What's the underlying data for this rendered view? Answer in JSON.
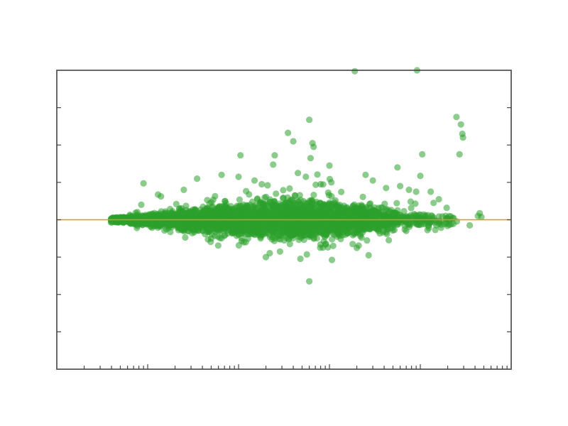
{
  "chart_data": {
    "type": "scatter",
    "title": "",
    "xlabel": "",
    "ylabel": "",
    "x_scale": "log",
    "xlim": [
      0.1,
      10000
    ],
    "ylim": [
      -8,
      8
    ],
    "x_major_ticks": [
      1,
      10,
      100,
      1000,
      10000
    ],
    "y_ticks": [
      -8,
      -6,
      -4,
      -2,
      0,
      2,
      4,
      6,
      8
    ],
    "tick_labels_visible": false,
    "grid": false,
    "reference_line": {
      "y": 0,
      "color": "#e8901c"
    },
    "point_color": "#2ca02c",
    "dense_cloud": [
      {
        "x": 0.5,
        "spread": 0.1,
        "n": 260
      },
      {
        "x": 0.8,
        "spread": 0.2,
        "n": 320
      },
      {
        "x": 1.5,
        "spread": 0.3,
        "n": 380
      },
      {
        "x": 3,
        "spread": 0.45,
        "n": 420
      },
      {
        "x": 6,
        "spread": 0.6,
        "n": 440
      },
      {
        "x": 12,
        "spread": 0.7,
        "n": 460
      },
      {
        "x": 25,
        "spread": 0.8,
        "n": 460
      },
      {
        "x": 50,
        "spread": 0.9,
        "n": 440
      },
      {
        "x": 100,
        "spread": 0.85,
        "n": 380
      },
      {
        "x": 200,
        "spread": 0.7,
        "n": 280
      },
      {
        "x": 400,
        "spread": 0.55,
        "n": 170
      },
      {
        "x": 800,
        "spread": 0.35,
        "n": 90
      },
      {
        "x": 2000,
        "spread": 0.3,
        "n": 40
      }
    ],
    "series": [
      {
        "values": [
          {
            "x": 0.9,
            "y": 1.95
          },
          {
            "x": 1.3,
            "y": 1.35
          },
          {
            "x": 1.4,
            "y": 1.25
          },
          {
            "x": 0.85,
            "y": 0.8
          },
          {
            "x": 2.5,
            "y": 1.6
          },
          {
            "x": 3.5,
            "y": 2.2
          },
          {
            "x": 6.5,
            "y": 2.4
          },
          {
            "x": 10,
            "y": 2.3
          },
          {
            "x": 10.5,
            "y": 3.45
          },
          {
            "x": 25,
            "y": 3.45
          },
          {
            "x": 24,
            "y": 2.95
          },
          {
            "x": 20,
            "y": -2.0
          },
          {
            "x": 40,
            "y": 4.2
          },
          {
            "x": 35,
            "y": 4.65
          },
          {
            "x": 60,
            "y": 5.35
          },
          {
            "x": 60,
            "y": -3.3
          },
          {
            "x": 65,
            "y": 4.1
          },
          {
            "x": 67,
            "y": 3.9
          },
          {
            "x": 62,
            "y": 3.3
          },
          {
            "x": 100,
            "y": 2.9
          },
          {
            "x": 105,
            "y": 2.0
          },
          {
            "x": 110,
            "y": -1.4
          },
          {
            "x": 190,
            "y": 7.95
          },
          {
            "x": 250,
            "y": 2.4
          },
          {
            "x": 300,
            "y": 2.1
          },
          {
            "x": 420,
            "y": 1.7
          },
          {
            "x": 180,
            "y": -1.3
          },
          {
            "x": 270,
            "y": -1.9
          },
          {
            "x": 560,
            "y": 2.8
          },
          {
            "x": 1000,
            "y": 2.35
          },
          {
            "x": 1050,
            "y": 3.5
          },
          {
            "x": 920,
            "y": 8.0
          },
          {
            "x": 2500,
            "y": 5.5
          },
          {
            "x": 2800,
            "y": 5.1
          },
          {
            "x": 2900,
            "y": 4.6
          },
          {
            "x": 2950,
            "y": 4.4
          },
          {
            "x": 2700,
            "y": 3.5
          },
          {
            "x": 4500,
            "y": 0.35
          },
          {
            "x": 4700,
            "y": 0.15
          },
          {
            "x": 4300,
            "y": 0.2
          },
          {
            "x": 3500,
            "y": -0.3
          },
          {
            "x": 1300,
            "y": 1.5
          },
          {
            "x": 1400,
            "y": 0.9
          },
          {
            "x": 1500,
            "y": -0.3
          },
          {
            "x": 700,
            "y": -0.6
          },
          {
            "x": 450,
            "y": -1.1
          },
          {
            "x": 200,
            "y": -1.5
          },
          {
            "x": 150,
            "y": -0.8
          },
          {
            "x": 5,
            "y": -1.0
          },
          {
            "x": 12,
            "y": -1.2
          },
          {
            "x": 18,
            "y": 1.9
          },
          {
            "x": 15,
            "y": 2.1
          },
          {
            "x": 45,
            "y": 2.5
          },
          {
            "x": 55,
            "y": 2.3
          },
          {
            "x": 80,
            "y": 1.9
          },
          {
            "x": 600,
            "y": 1.8
          },
          {
            "x": 750,
            "y": 1.6
          },
          {
            "x": 900,
            "y": 1.5
          },
          {
            "x": 1600,
            "y": 1.1
          },
          {
            "x": 1200,
            "y": -0.55
          }
        ]
      }
    ]
  }
}
